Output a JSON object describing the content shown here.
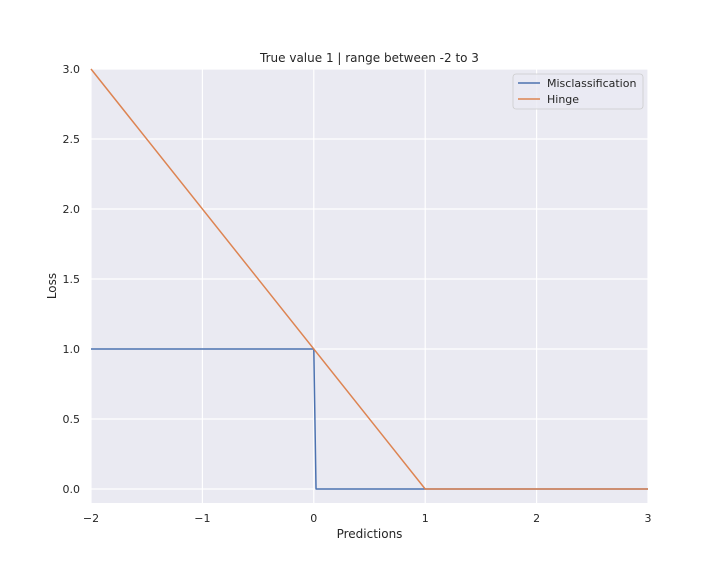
{
  "chart_data": {
    "type": "line",
    "title": "True value 1 | range between -2 to 3",
    "xlabel": "Predictions",
    "ylabel": "Loss",
    "xlim": [
      -2,
      3
    ],
    "ylim": [
      -0.1,
      3.0
    ],
    "xticks": [
      -2,
      -1,
      0,
      1,
      2,
      3
    ],
    "xtick_labels": [
      "−2",
      "−1",
      "0",
      "1",
      "2",
      "3"
    ],
    "yticks": [
      0.0,
      0.5,
      1.0,
      1.5,
      2.0,
      2.5,
      3.0
    ],
    "ytick_labels": [
      "0.0",
      "0.5",
      "1.0",
      "1.5",
      "2.0",
      "2.5",
      "3.0"
    ],
    "grid": true,
    "legend_position": "top-right",
    "series": [
      {
        "name": "Misclassification",
        "color": "#4c72b0",
        "x": [
          -2,
          0,
          0.02,
          3
        ],
        "y": [
          1,
          1,
          0,
          0
        ]
      },
      {
        "name": "Hinge",
        "color": "#dd8452",
        "x": [
          -2,
          1,
          3
        ],
        "y": [
          3,
          0,
          0
        ]
      }
    ]
  }
}
